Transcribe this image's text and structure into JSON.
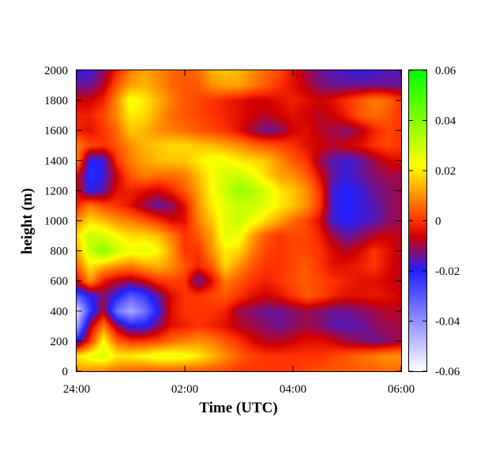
{
  "chart_data": {
    "type": "heatmap",
    "title": "",
    "xlabel": "Time (UTC)",
    "ylabel": "height (m)",
    "x_ticks": [
      "24:00",
      "02:00",
      "04:00",
      "06:00"
    ],
    "x_range_hours": [
      0,
      6
    ],
    "y_ticks": [
      "0",
      "200",
      "400",
      "600",
      "800",
      "1000",
      "1200",
      "1400",
      "1600",
      "1800",
      "2000"
    ],
    "ylim": [
      0,
      2000
    ],
    "colorbar": {
      "ticks": [
        "0.06",
        "0.04",
        "0.02",
        "0",
        "-0.02",
        "-0.04",
        "-0.06"
      ],
      "range": [
        -0.06,
        0.06
      ],
      "colors": [
        "#ffffff",
        "#2020ff",
        "#d00000",
        "#ff3300",
        "#ffff00",
        "#00ff00"
      ]
    },
    "grid": false,
    "x_hours": [
      0,
      0.25,
      0.5,
      0.75,
      1.0,
      1.25,
      1.5,
      1.75,
      2.0,
      2.25,
      2.5,
      2.75,
      3.0,
      3.25,
      3.5,
      3.75,
      4.0,
      4.25,
      4.5,
      4.75,
      5.0,
      5.25,
      5.5,
      5.75,
      6.0
    ],
    "heights_m": [
      0,
      100,
      200,
      300,
      400,
      500,
      600,
      700,
      800,
      900,
      1000,
      1100,
      1200,
      1300,
      1400,
      1500,
      1600,
      1700,
      1800,
      1900,
      2000
    ],
    "values": [
      [
        0.01,
        0.01,
        0.008,
        0.006,
        0.005,
        0.004,
        0.004,
        0.004,
        0.004,
        0.004,
        0.003,
        0.002,
        0.0,
        0.0,
        0.0,
        0.0,
        0.0,
        0.002,
        0.003,
        0.004,
        0.004,
        0.005,
        0.005,
        0.006,
        0.006
      ],
      [
        0.02,
        0.025,
        0.028,
        0.02,
        0.02,
        0.022,
        0.025,
        0.025,
        0.024,
        0.02,
        0.015,
        0.01,
        0.005,
        0.002,
        0.0,
        0.0,
        0.0,
        0.0,
        0.0,
        0.002,
        0.004,
        0.006,
        0.008,
        0.01,
        0.01
      ],
      [
        -0.02,
        0.0,
        0.022,
        0.005,
        0.0,
        0.0,
        0.002,
        0.006,
        0.008,
        0.01,
        0.008,
        0.004,
        0.0,
        -0.005,
        -0.008,
        -0.008,
        -0.006,
        -0.004,
        -0.004,
        -0.006,
        -0.01,
        -0.012,
        -0.014,
        -0.012,
        -0.01
      ],
      [
        -0.045,
        -0.008,
        0.008,
        -0.01,
        -0.02,
        -0.02,
        -0.012,
        -0.004,
        -0.002,
        0.0,
        -0.002,
        -0.004,
        -0.008,
        -0.01,
        -0.012,
        -0.014,
        -0.012,
        -0.01,
        -0.012,
        -0.015,
        -0.016,
        -0.015,
        -0.012,
        -0.01,
        -0.01
      ],
      [
        -0.055,
        -0.025,
        -0.008,
        -0.035,
        -0.045,
        -0.035,
        -0.02,
        -0.004,
        0.0,
        0.0,
        0.0,
        -0.002,
        -0.01,
        -0.012,
        -0.014,
        -0.014,
        -0.012,
        -0.01,
        -0.012,
        -0.014,
        -0.014,
        -0.012,
        -0.01,
        -0.008,
        -0.008
      ],
      [
        -0.03,
        -0.02,
        -0.012,
        -0.02,
        -0.03,
        -0.025,
        -0.015,
        -0.005,
        0.0,
        0.0,
        0.002,
        0.004,
        0.0,
        -0.004,
        -0.006,
        -0.004,
        0.0,
        0.004,
        0.002,
        -0.002,
        -0.004,
        -0.004,
        -0.003,
        -0.004,
        -0.006
      ],
      [
        -0.005,
        0.01,
        -0.003,
        -0.008,
        -0.01,
        -0.006,
        0.0,
        0.002,
        0.0,
        -0.015,
        -0.005,
        0.008,
        0.004,
        0.0,
        -0.002,
        0.0,
        0.003,
        0.004,
        0.002,
        0.0,
        -0.002,
        -0.004,
        -0.004,
        -0.006,
        -0.008
      ],
      [
        0.005,
        0.02,
        0.014,
        0.01,
        0.008,
        0.012,
        0.014,
        0.01,
        0.004,
        -0.002,
        0.004,
        0.018,
        0.01,
        0.004,
        0.0,
        0.0,
        0.002,
        0.004,
        0.0,
        -0.004,
        -0.004,
        -0.002,
        0.0,
        -0.004,
        -0.008
      ],
      [
        0.012,
        0.03,
        0.04,
        0.03,
        0.024,
        0.026,
        0.022,
        0.012,
        0.0,
        0.0,
        0.01,
        0.02,
        0.018,
        0.008,
        0.002,
        0.0,
        0.002,
        0.002,
        0.0,
        -0.005,
        -0.008,
        -0.005,
        0.0,
        -0.004,
        -0.008
      ],
      [
        0.018,
        0.03,
        0.028,
        0.022,
        0.018,
        0.018,
        0.015,
        0.008,
        0.0,
        0.004,
        0.012,
        0.026,
        0.024,
        0.012,
        0.004,
        0.0,
        0.002,
        0.002,
        -0.002,
        -0.01,
        -0.015,
        -0.012,
        -0.008,
        -0.006,
        -0.008
      ],
      [
        0.01,
        0.018,
        0.015,
        0.01,
        0.008,
        0.004,
        0.0,
        -0.005,
        -0.004,
        0.008,
        0.016,
        0.026,
        0.03,
        0.024,
        0.018,
        0.012,
        0.006,
        0.002,
        -0.005,
        -0.018,
        -0.02,
        -0.018,
        -0.016,
        -0.012,
        -0.01
      ],
      [
        -0.002,
        0.008,
        0.002,
        0.0,
        -0.004,
        -0.01,
        -0.015,
        -0.012,
        -0.004,
        0.01,
        0.02,
        0.026,
        0.03,
        0.03,
        0.026,
        0.02,
        0.016,
        0.01,
        0.0,
        -0.018,
        -0.02,
        -0.018,
        -0.016,
        -0.012,
        -0.01
      ],
      [
        -0.005,
        -0.02,
        -0.015,
        -0.004,
        -0.002,
        -0.004,
        -0.006,
        -0.002,
        0.004,
        0.012,
        0.022,
        0.03,
        0.038,
        0.035,
        0.028,
        0.02,
        0.016,
        0.01,
        0.0,
        -0.018,
        -0.02,
        -0.018,
        -0.014,
        -0.012,
        -0.01
      ],
      [
        -0.005,
        -0.022,
        -0.018,
        -0.006,
        0.004,
        0.008,
        0.006,
        0.006,
        0.008,
        0.015,
        0.022,
        0.028,
        0.03,
        0.025,
        0.018,
        0.012,
        0.01,
        0.005,
        -0.005,
        -0.015,
        -0.018,
        -0.015,
        -0.012,
        -0.01,
        -0.01
      ],
      [
        0.01,
        -0.02,
        -0.018,
        0.0,
        0.008,
        0.012,
        0.015,
        0.016,
        0.016,
        0.02,
        0.024,
        0.024,
        0.02,
        0.018,
        0.016,
        0.01,
        0.004,
        0.0,
        -0.01,
        -0.016,
        -0.018,
        -0.015,
        -0.01,
        -0.006,
        -0.004
      ],
      [
        0.008,
        0.002,
        0.0,
        0.004,
        0.01,
        0.014,
        0.016,
        0.018,
        0.018,
        0.016,
        0.015,
        0.012,
        0.01,
        0.006,
        0.004,
        0.002,
        0.0,
        -0.004,
        -0.006,
        -0.008,
        -0.006,
        -0.004,
        0.0,
        0.002,
        0.0
      ],
      [
        -0.002,
        -0.004,
        0.0,
        0.006,
        0.016,
        0.014,
        0.01,
        0.008,
        0.006,
        0.004,
        0.002,
        0.0,
        -0.004,
        -0.01,
        -0.014,
        -0.012,
        -0.006,
        -0.004,
        -0.008,
        -0.01,
        -0.012,
        -0.008,
        -0.002,
        0.002,
        0.0
      ],
      [
        -0.002,
        -0.002,
        0.002,
        0.01,
        0.02,
        0.018,
        0.012,
        0.006,
        0.004,
        0.002,
        0.0,
        -0.002,
        -0.004,
        -0.006,
        -0.008,
        -0.006,
        -0.004,
        -0.006,
        -0.008,
        -0.006,
        -0.002,
        0.004,
        0.006,
        0.004,
        0.0
      ],
      [
        -0.006,
        -0.006,
        -0.002,
        0.01,
        0.024,
        0.02,
        0.014,
        0.008,
        0.004,
        0.002,
        0.0,
        -0.002,
        -0.004,
        -0.006,
        -0.006,
        -0.004,
        -0.002,
        -0.004,
        -0.006,
        -0.004,
        0.0,
        0.004,
        0.008,
        0.006,
        0.0
      ],
      [
        -0.014,
        -0.014,
        -0.008,
        0.004,
        0.012,
        0.014,
        0.01,
        0.006,
        0.004,
        0.004,
        0.01,
        0.012,
        0.012,
        0.008,
        0.004,
        0.0,
        -0.004,
        -0.008,
        -0.012,
        -0.014,
        -0.014,
        -0.014,
        -0.014,
        -0.014,
        -0.014
      ],
      [
        -0.018,
        -0.018,
        -0.012,
        -0.002,
        0.008,
        0.012,
        0.01,
        0.006,
        0.004,
        0.006,
        0.014,
        0.016,
        0.014,
        0.01,
        0.006,
        0.002,
        -0.004,
        -0.01,
        -0.014,
        -0.016,
        -0.018,
        -0.018,
        -0.018,
        -0.016,
        -0.016
      ]
    ]
  }
}
